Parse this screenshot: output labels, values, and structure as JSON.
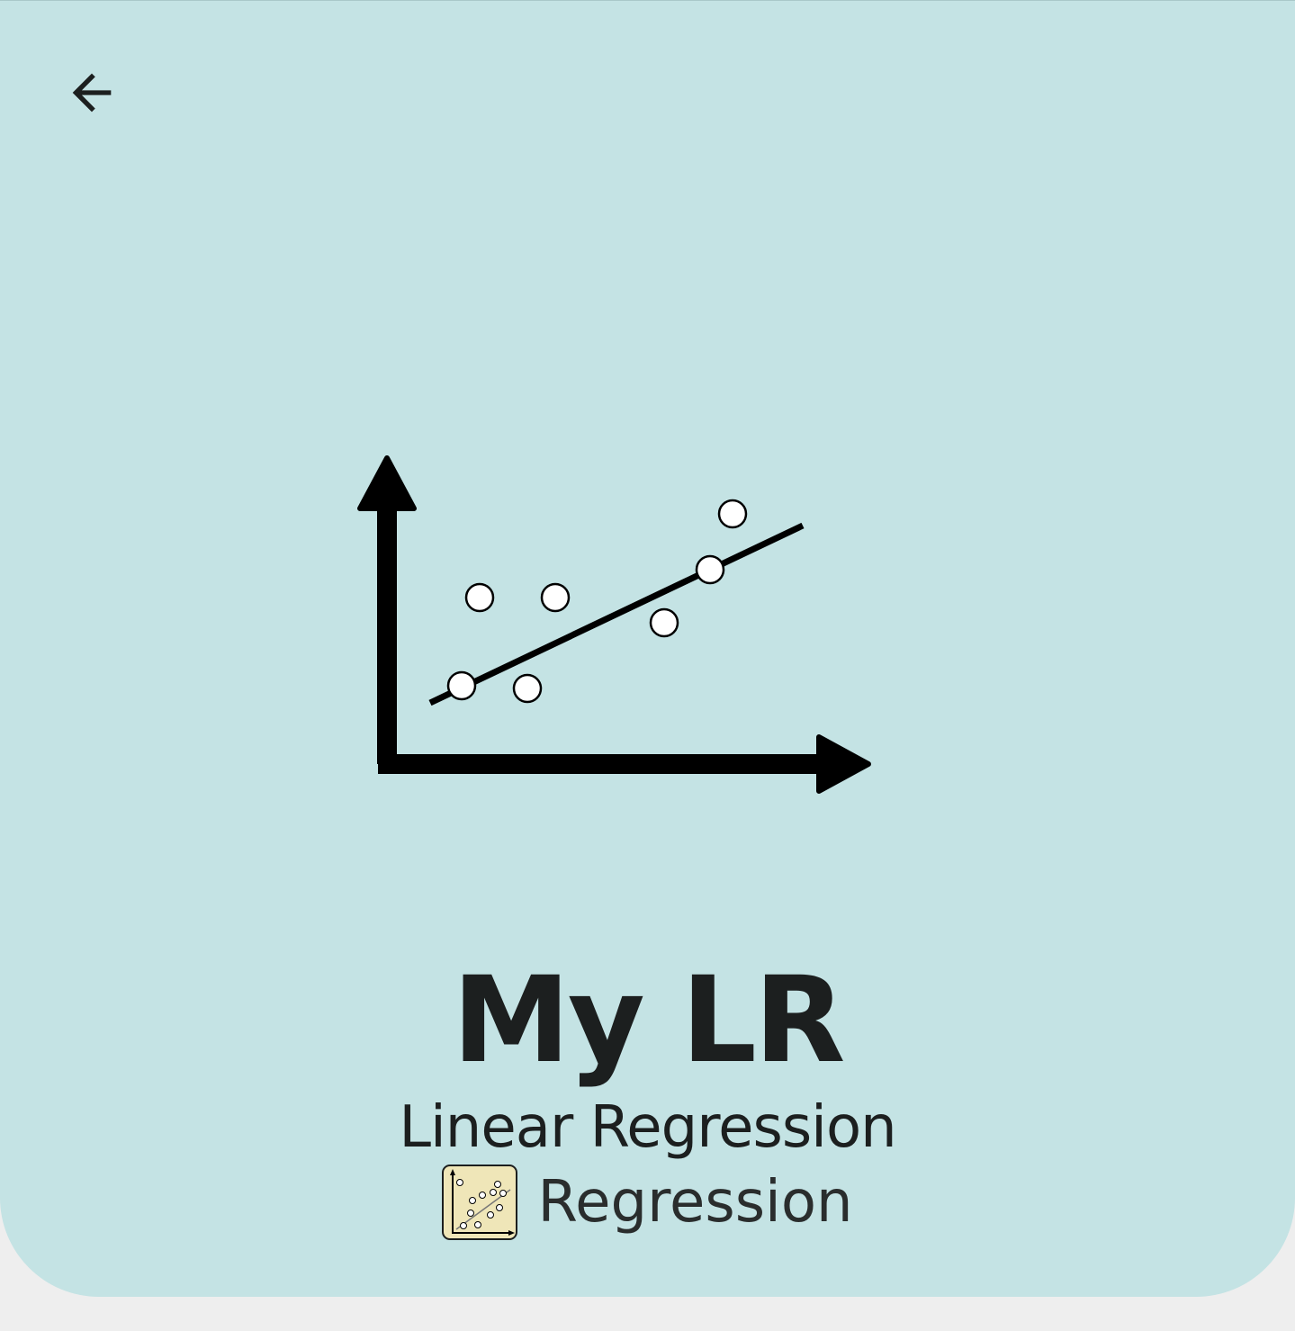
{
  "header": {
    "background_color": "#c4e3e4",
    "back_icon": "arrow-left-icon"
  },
  "illustration": {
    "icon": "linear-regression-scatter-icon"
  },
  "model": {
    "name": "My LR",
    "type": "Linear Regression",
    "category": {
      "label": "Regression",
      "icon": "regression-scatter-badge-icon",
      "badge_color": "#efe6b8"
    }
  },
  "page_background_color": "#eeeeee"
}
